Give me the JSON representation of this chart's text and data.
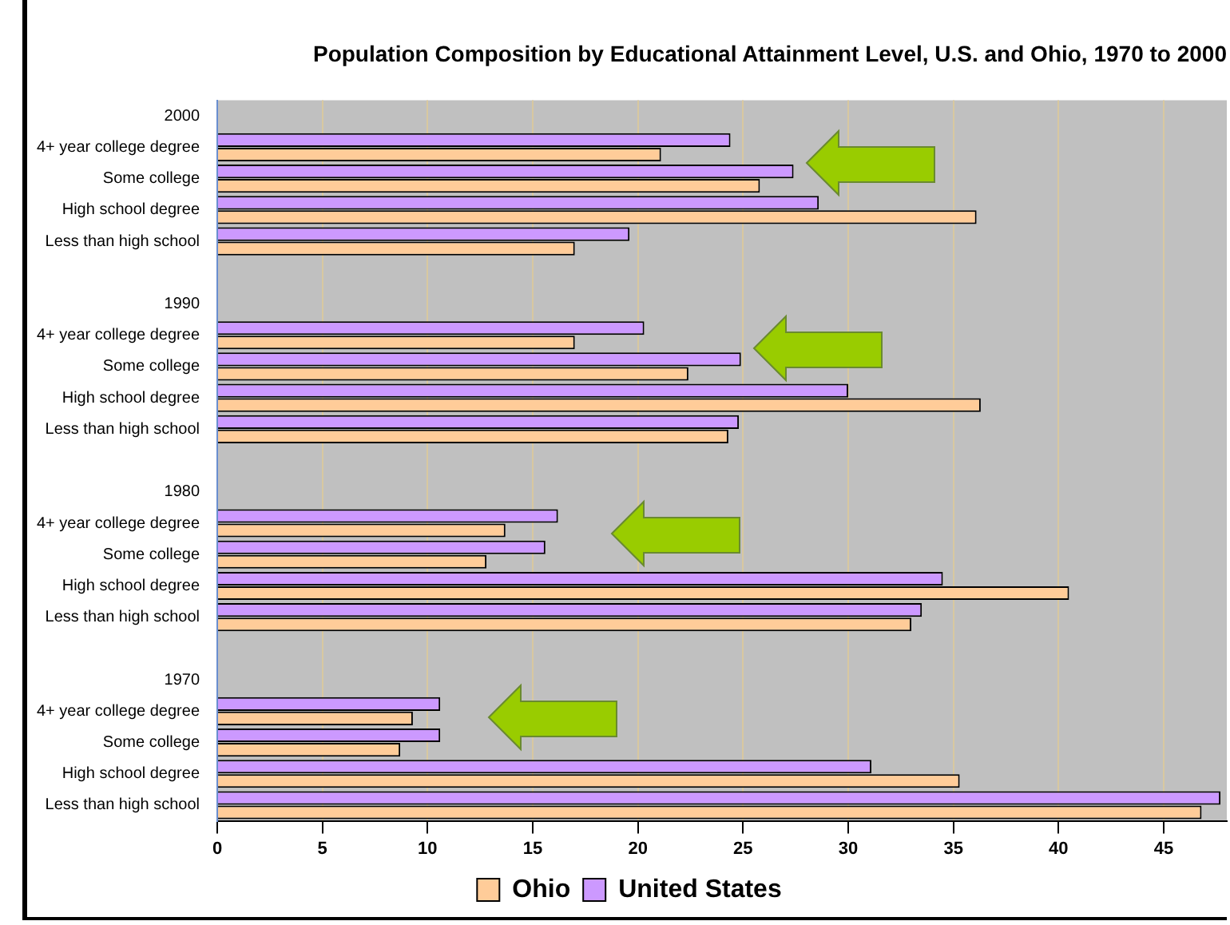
{
  "chart_data": {
    "type": "bar",
    "orientation": "horizontal",
    "title": "Population Composition by Educational Attainment Level, U.S. and Ohio, 1970 to 2000",
    "categories": [
      "2000",
      "4+ year college degree",
      "Some college",
      "High school degree",
      "Less than high school",
      null,
      "1990",
      "4+ year college degree",
      "Some college",
      "High school degree",
      "Less than high school",
      null,
      "1980",
      "4+ year college degree",
      "Some college",
      "High school degree",
      "Less than high school",
      null,
      "1970",
      "4+ year college degree",
      "Some college",
      "High school degree",
      "Less than high school"
    ],
    "series": [
      {
        "name": "Ohio",
        "color": "#ffcc99",
        "values": [
          null,
          21.1,
          25.8,
          36.1,
          17.0,
          null,
          null,
          17.0,
          22.4,
          36.3,
          24.3,
          null,
          null,
          13.7,
          12.8,
          40.5,
          33.0,
          null,
          null,
          9.3,
          8.7,
          35.3,
          46.8
        ]
      },
      {
        "name": "United States",
        "color": "#cc99ff",
        "values": [
          null,
          24.4,
          27.4,
          28.6,
          19.6,
          null,
          null,
          20.3,
          24.9,
          30.0,
          24.8,
          null,
          null,
          16.2,
          15.6,
          34.5,
          33.5,
          null,
          null,
          10.6,
          10.6,
          31.1,
          47.7
        ]
      }
    ],
    "xlim": [
      0,
      48
    ],
    "xticks": [
      0,
      5,
      10,
      15,
      20,
      25,
      30,
      35,
      40,
      45
    ],
    "grid": "x",
    "legend": "bottom"
  }
}
